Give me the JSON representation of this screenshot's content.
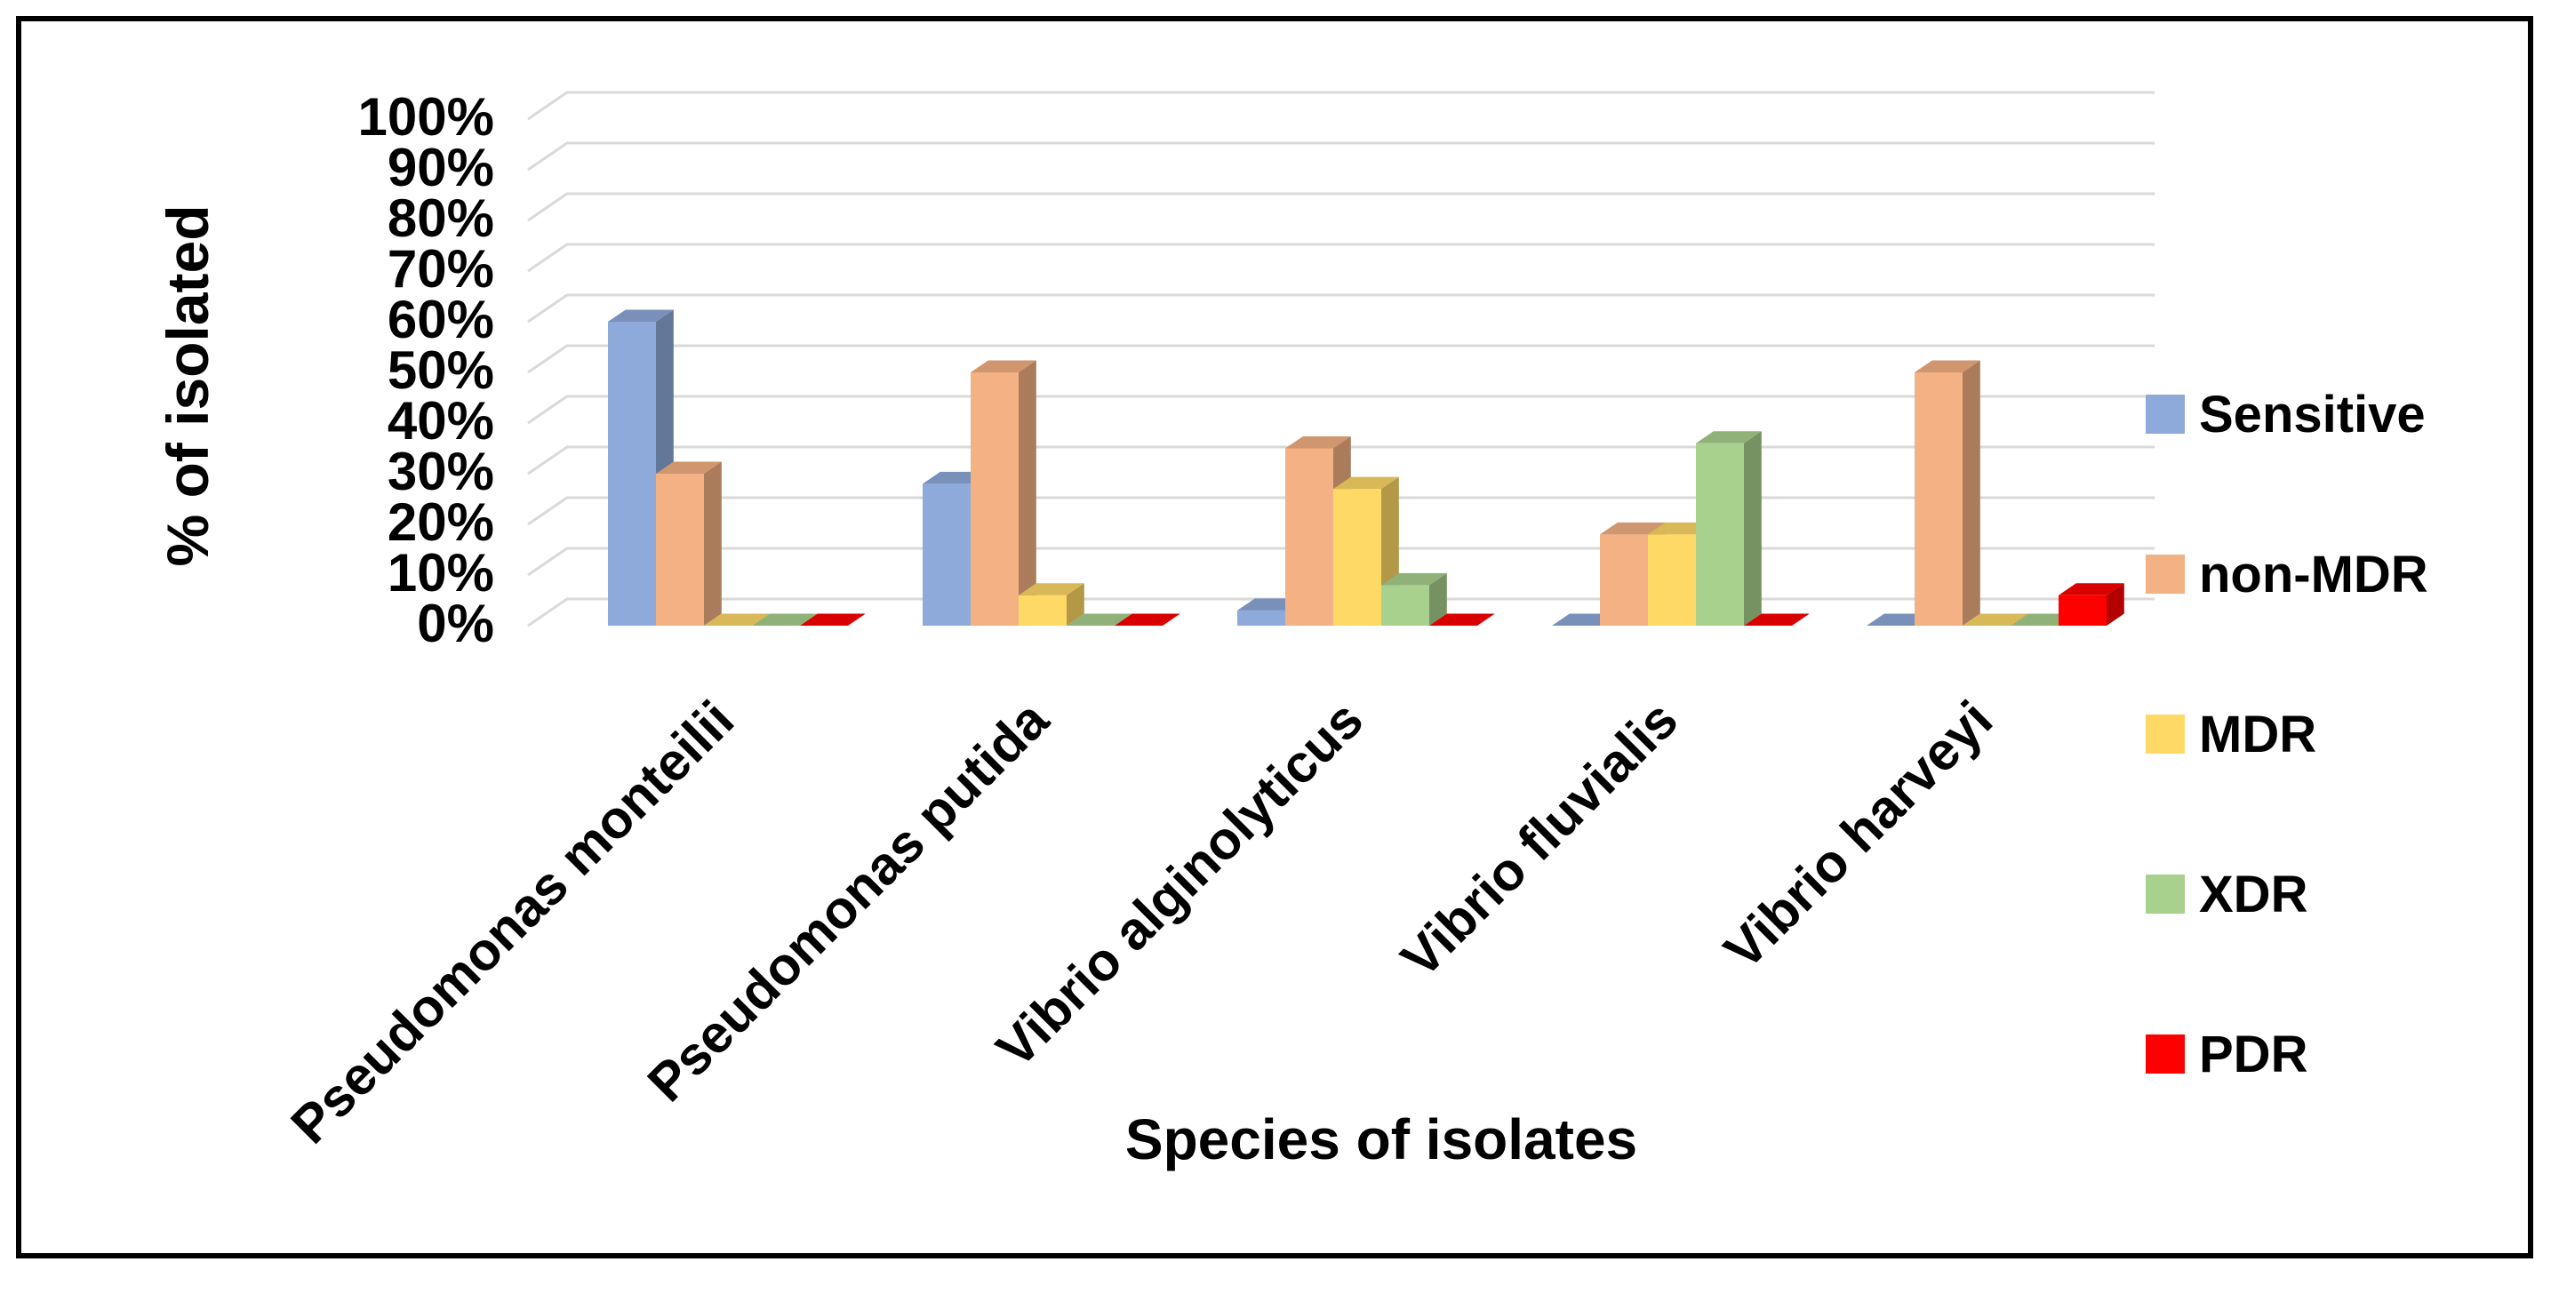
{
  "chart_data": {
    "type": "bar",
    "style": "3d-clustered-column",
    "title": "",
    "xlabel": "Species of isolates",
    "ylabel": "% of isolated",
    "ylim": [
      0,
      100
    ],
    "y_ticks": [
      "0%",
      "10%",
      "20%",
      "30%",
      "40%",
      "50%",
      "60%",
      "70%",
      "80%",
      "90%",
      "100%"
    ],
    "grid": true,
    "legend_position": "right",
    "categories": [
      "Pseudomonas monteilii",
      "Pseudomonas putida",
      "Vibrio alginolyticus",
      "Vibrio fluvialis",
      "Vibrio harveyi"
    ],
    "series": [
      {
        "name": "Sensitive",
        "color": "#8EAADB",
        "values": [
          60,
          28,
          3,
          0,
          0
        ]
      },
      {
        "name": "non-MDR",
        "color": "#F4B183",
        "values": [
          30,
          50,
          35,
          18,
          50
        ]
      },
      {
        "name": "MDR",
        "color": "#FFD966",
        "values": [
          0,
          6,
          27,
          18,
          0
        ]
      },
      {
        "name": "XDR",
        "color": "#A9D18E",
        "values": [
          0,
          0,
          8,
          36,
          0
        ]
      },
      {
        "name": "PDR",
        "color": "#FF0000",
        "values": [
          0,
          0,
          0,
          0,
          6
        ]
      }
    ]
  }
}
